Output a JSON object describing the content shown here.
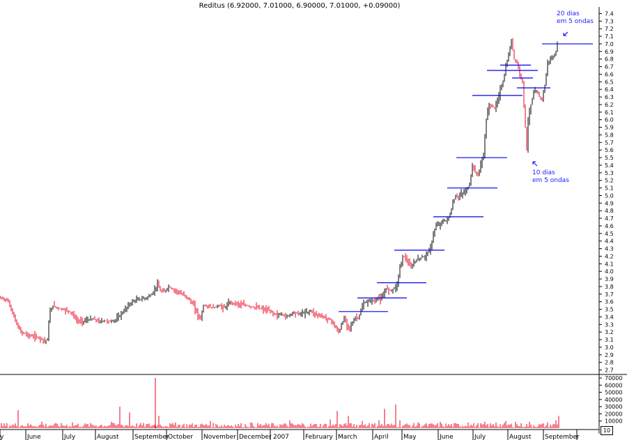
{
  "chart_data": {
    "type": "candlestick",
    "title": "Reditus (6.92000, 7.01000, 6.90000, 7.01000, +0.09000)",
    "xlabel": "",
    "ylabel": "",
    "price_ticks": [
      7.4,
      7.3,
      7.2,
      7.1,
      7.0,
      6.9,
      6.8,
      6.7,
      6.6,
      6.5,
      6.4,
      6.3,
      6.2,
      6.1,
      6.0,
      5.9,
      5.8,
      5.7,
      5.6,
      5.5,
      5.4,
      5.3,
      5.2,
      5.1,
      5.0,
      4.9,
      4.8,
      4.7,
      4.6,
      4.5,
      4.4,
      4.3,
      4.2,
      4.1,
      4.0,
      3.9,
      3.8,
      3.7,
      3.6,
      3.5,
      3.4,
      3.3,
      3.2,
      3.1,
      3.0,
      2.9,
      2.8,
      2.7
    ],
    "price_range": [
      2.65,
      7.45
    ],
    "volume_ticks": [
      "70000",
      "60000",
      "50000",
      "40000",
      "30000",
      "20000",
      "10000"
    ],
    "volume_range": [
      0,
      72000
    ],
    "month_labels": [
      "y",
      "June",
      "July",
      "August",
      "September",
      "October",
      "November",
      "December",
      "2007",
      "February",
      "March",
      "April",
      "May",
      "June",
      "July",
      "August",
      "September"
    ],
    "price_series": [
      [
        0,
        3.65
      ],
      [
        6,
        3.64
      ],
      [
        12,
        3.6
      ],
      [
        18,
        3.45
      ],
      [
        24,
        3.3
      ],
      [
        30,
        3.2
      ],
      [
        36,
        3.18
      ],
      [
        42,
        3.15
      ],
      [
        50,
        3.14
      ],
      [
        58,
        3.12
      ],
      [
        64,
        3.08
      ],
      [
        68,
        3.1
      ],
      [
        71,
        3.45
      ],
      [
        76,
        3.55
      ],
      [
        82,
        3.52
      ],
      [
        90,
        3.5
      ],
      [
        98,
        3.48
      ],
      [
        104,
        3.44
      ],
      [
        110,
        3.35
      ],
      [
        118,
        3.34
      ],
      [
        126,
        3.36
      ],
      [
        134,
        3.37
      ],
      [
        142,
        3.34
      ],
      [
        150,
        3.35
      ],
      [
        158,
        3.34
      ],
      [
        166,
        3.36
      ],
      [
        172,
        3.42
      ],
      [
        178,
        3.48
      ],
      [
        184,
        3.55
      ],
      [
        190,
        3.6
      ],
      [
        198,
        3.63
      ],
      [
        206,
        3.64
      ],
      [
        212,
        3.66
      ],
      [
        218,
        3.7
      ],
      [
        222,
        3.76
      ],
      [
        226,
        3.83
      ],
      [
        230,
        3.74
      ],
      [
        236,
        3.73
      ],
      [
        242,
        3.8
      ],
      [
        248,
        3.76
      ],
      [
        254,
        3.74
      ],
      [
        260,
        3.7
      ],
      [
        266,
        3.68
      ],
      [
        272,
        3.62
      ],
      [
        278,
        3.55
      ],
      [
        284,
        3.42
      ],
      [
        288,
        3.38
      ],
      [
        292,
        3.55
      ],
      [
        298,
        3.54
      ],
      [
        306,
        3.52
      ],
      [
        314,
        3.55
      ],
      [
        322,
        3.52
      ],
      [
        330,
        3.59
      ],
      [
        338,
        3.58
      ],
      [
        346,
        3.56
      ],
      [
        354,
        3.55
      ],
      [
        362,
        3.53
      ],
      [
        370,
        3.52
      ],
      [
        378,
        3.5
      ],
      [
        386,
        3.48
      ],
      [
        392,
        3.45
      ],
      [
        398,
        3.42
      ],
      [
        404,
        3.44
      ],
      [
        410,
        3.4
      ],
      [
        416,
        3.43
      ],
      [
        422,
        3.46
      ],
      [
        428,
        3.44
      ],
      [
        434,
        3.45
      ],
      [
        440,
        3.46
      ],
      [
        446,
        3.48
      ],
      [
        452,
        3.44
      ],
      [
        458,
        3.42
      ],
      [
        464,
        3.4
      ],
      [
        470,
        3.38
      ],
      [
        476,
        3.35
      ],
      [
        480,
        3.28
      ],
      [
        484,
        3.22
      ],
      [
        487,
        3.2
      ],
      [
        490,
        3.3
      ],
      [
        494,
        3.38
      ],
      [
        498,
        3.3
      ],
      [
        502,
        3.26
      ],
      [
        506,
        3.32
      ],
      [
        510,
        3.4
      ],
      [
        514,
        3.38
      ],
      [
        518,
        3.48
      ],
      [
        522,
        3.58
      ],
      [
        528,
        3.6
      ],
      [
        534,
        3.62
      ],
      [
        538,
        3.6
      ],
      [
        542,
        3.66
      ],
      [
        546,
        3.63
      ],
      [
        550,
        3.68
      ],
      [
        554,
        3.78
      ],
      [
        560,
        3.75
      ],
      [
        566,
        3.78
      ],
      [
        570,
        3.83
      ],
      [
        574,
        4.05
      ],
      [
        578,
        4.2
      ],
      [
        582,
        4.18
      ],
      [
        586,
        4.1
      ],
      [
        590,
        4.05
      ],
      [
        594,
        4.12
      ],
      [
        598,
        4.15
      ],
      [
        604,
        4.18
      ],
      [
        610,
        4.2
      ],
      [
        614,
        4.25
      ],
      [
        618,
        4.3
      ],
      [
        622,
        4.5
      ],
      [
        626,
        4.6
      ],
      [
        630,
        4.62
      ],
      [
        636,
        4.66
      ],
      [
        642,
        4.68
      ],
      [
        646,
        4.75
      ],
      [
        650,
        4.9
      ],
      [
        654,
        5.0
      ],
      [
        658,
        4.98
      ],
      [
        662,
        5.02
      ],
      [
        666,
        5.04
      ],
      [
        670,
        5.08
      ],
      [
        674,
        5.15
      ],
      [
        678,
        5.4
      ],
      [
        682,
        5.3
      ],
      [
        686,
        5.28
      ],
      [
        690,
        5.4
      ],
      [
        694,
        5.55
      ],
      [
        698,
        6.0
      ],
      [
        702,
        6.2
      ],
      [
        706,
        6.18
      ],
      [
        710,
        6.15
      ],
      [
        714,
        6.25
      ],
      [
        718,
        6.4
      ],
      [
        722,
        6.5
      ],
      [
        726,
        6.7
      ],
      [
        730,
        6.85
      ],
      [
        734,
        7.05
      ],
      [
        738,
        6.8
      ],
      [
        742,
        6.75
      ],
      [
        746,
        6.6
      ],
      [
        750,
        6.5
      ],
      [
        752,
        6.2
      ],
      [
        754,
        5.9
      ],
      [
        756,
        5.6
      ],
      [
        758,
        6.0
      ],
      [
        762,
        6.2
      ],
      [
        766,
        6.35
      ],
      [
        770,
        6.38
      ],
      [
        774,
        6.3
      ],
      [
        778,
        6.28
      ],
      [
        782,
        6.45
      ],
      [
        786,
        6.75
      ],
      [
        790,
        6.8
      ],
      [
        794,
        6.82
      ],
      [
        798,
        6.9
      ],
      [
        801,
        7.01
      ]
    ],
    "volume_series": [
      [
        26,
        25000
      ],
      [
        60,
        9000
      ],
      [
        104,
        8000
      ],
      [
        160,
        9000
      ],
      [
        172,
        30000
      ],
      [
        186,
        22000
      ],
      [
        223,
        70000
      ],
      [
        228,
        17000
      ],
      [
        252,
        8000
      ],
      [
        302,
        10000
      ],
      [
        360,
        8000
      ],
      [
        416,
        11000
      ],
      [
        434,
        7000
      ],
      [
        474,
        12000
      ],
      [
        484,
        24000
      ],
      [
        500,
        17000
      ],
      [
        520,
        10000
      ],
      [
        530,
        7000
      ],
      [
        544,
        11000
      ],
      [
        552,
        27000
      ],
      [
        568,
        33000
      ],
      [
        574,
        11000
      ],
      [
        600,
        8000
      ],
      [
        632,
        9000
      ],
      [
        652,
        7000
      ],
      [
        672,
        8000
      ],
      [
        696,
        9000
      ],
      [
        712,
        8000
      ],
      [
        726,
        10000
      ],
      [
        740,
        9000
      ],
      [
        760,
        9000
      ],
      [
        786,
        8000
      ],
      [
        798,
        11000
      ],
      [
        802,
        17000
      ]
    ],
    "horizontal_lines": [
      {
        "from": 486,
        "to": 557,
        "value": 3.47
      },
      {
        "from": 513,
        "to": 584,
        "value": 3.65
      },
      {
        "from": 541,
        "to": 612,
        "value": 3.85
      },
      {
        "from": 566,
        "to": 638,
        "value": 4.28
      },
      {
        "from": 622,
        "to": 694,
        "value": 4.72
      },
      {
        "from": 642,
        "to": 714,
        "value": 5.1
      },
      {
        "from": 655,
        "to": 728,
        "value": 5.5
      },
      {
        "from": 678,
        "to": 750,
        "value": 6.32
      },
      {
        "from": 699,
        "to": 772,
        "value": 6.65
      },
      {
        "from": 718,
        "to": 762,
        "value": 6.72
      },
      {
        "from": 735,
        "to": 765,
        "value": 6.55
      },
      {
        "from": 742,
        "to": 790,
        "value": 6.42
      },
      {
        "from": 778,
        "to": 851,
        "value": 7.0
      }
    ],
    "annotations": [
      {
        "text": "20 dias\nem 5 ondas",
        "color": "#1a1aff"
      },
      {
        "text": "10 dias\nem 5 ondas",
        "color": "#1a1aff"
      }
    ],
    "colors": {
      "up": "#000000",
      "down": "#e8001c",
      "volume": "#e8001c",
      "lines": "#0000ee",
      "annotation": "#1a1aff"
    },
    "zoom_label": "10"
  }
}
